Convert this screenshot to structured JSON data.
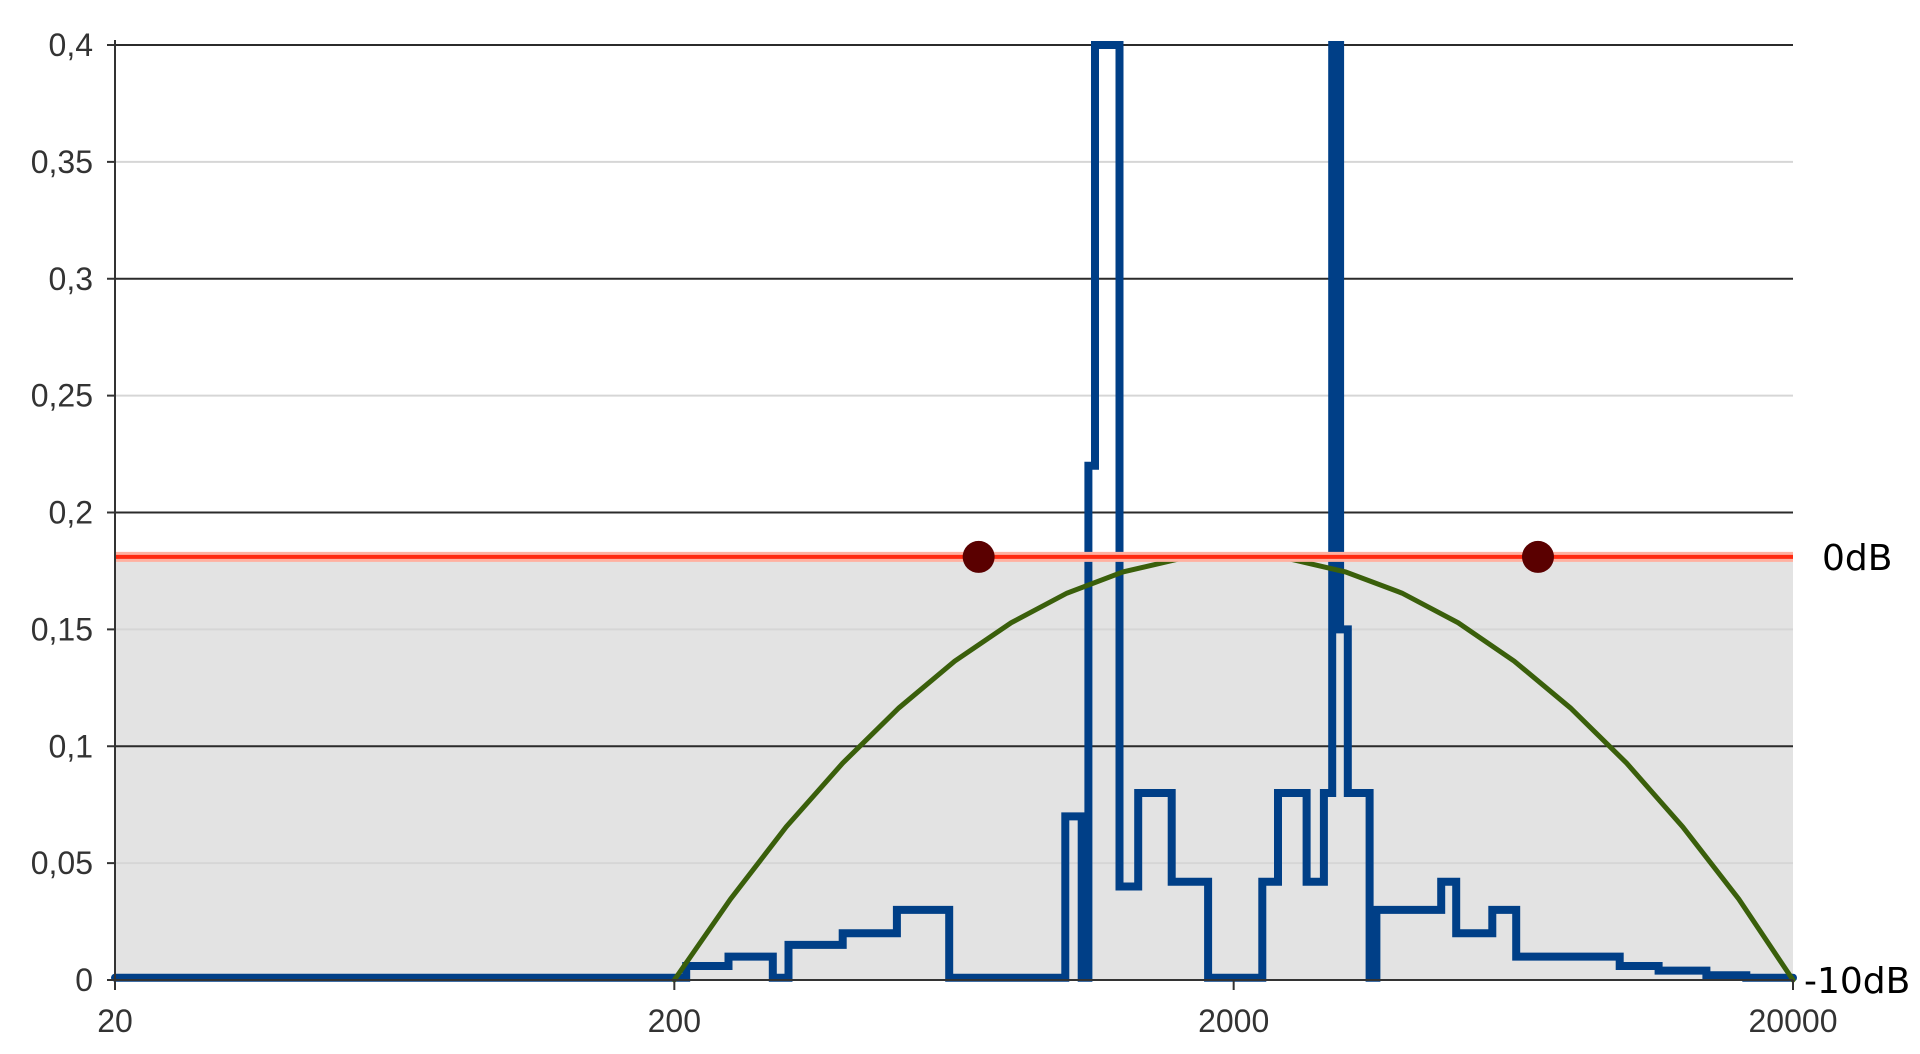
{
  "chart_data": {
    "type": "line",
    "x_scale": "log",
    "xlim": [
      20,
      20000
    ],
    "ylim": [
      0,
      0.4
    ],
    "x_ticks": [
      "20",
      "200",
      "2000",
      "20000"
    ],
    "y_ticks": [
      "0",
      "0,05",
      "0,1",
      "0,15",
      "0,2",
      "0,25",
      "0,3",
      "0,35",
      "0,4"
    ],
    "grid": true,
    "shaded_band": {
      "from": 0,
      "to": 0.18,
      "color": "#e3e3e3"
    },
    "reference_line": {
      "y": 0.181,
      "color": "#ff2a10"
    },
    "right_labels": [
      {
        "text": "0dB",
        "y": 0.181
      },
      {
        "text": "-10dB",
        "y": 0
      }
    ],
    "markers": [
      {
        "x": 700,
        "y": 0.181,
        "color": "#5a0000"
      },
      {
        "x": 7000,
        "y": 0.181,
        "color": "#5a0000"
      }
    ],
    "series": [
      {
        "style": "step",
        "color": "#003f87",
        "x": [
          20,
          200,
          210,
          210,
          250,
          250,
          300,
          300,
          320,
          320,
          400,
          400,
          500,
          500,
          620,
          620,
          1000,
          1000,
          1070,
          1070,
          1100,
          1100,
          1130,
          1130,
          1140,
          1140,
          1250,
          1250,
          1350,
          1350,
          1550,
          1550,
          1800,
          1800,
          2250,
          2250,
          2400,
          2400,
          2700,
          2700,
          2900,
          2900,
          3000,
          3000,
          3100,
          3100,
          3200,
          3200,
          3500,
          3500,
          3600,
          3600,
          4700,
          4700,
          5000,
          5000,
          5800,
          5800,
          6400,
          6400,
          7600,
          7600,
          8000,
          8000,
          9800,
          9800,
          11500,
          11500,
          14000,
          14000,
          16500,
          16500,
          20000
        ],
        "y": [
          0.001,
          0.001,
          0.001,
          0.006,
          0.006,
          0.01,
          0.01,
          0.001,
          0.001,
          0.015,
          0.015,
          0.02,
          0.02,
          0.03,
          0.03,
          0.001,
          0.001,
          0.07,
          0.07,
          0.001,
          0.001,
          0.22,
          0.22,
          0.4,
          0.4,
          0.4,
          0.4,
          0.04,
          0.04,
          0.08,
          0.08,
          0.042,
          0.042,
          0.001,
          0.001,
          0.042,
          0.042,
          0.08,
          0.08,
          0.042,
          0.042,
          0.08,
          0.08,
          0.4,
          0.4,
          0.15,
          0.15,
          0.08,
          0.08,
          0.001,
          0.001,
          0.03,
          0.03,
          0.042,
          0.042,
          0.02,
          0.02,
          0.03,
          0.03,
          0.01,
          0.01,
          0.01,
          0.01,
          0.01,
          0.01,
          0.006,
          0.006,
          0.004,
          0.004,
          0.002,
          0.002,
          0.001,
          0.001
        ]
      },
      {
        "style": "curve",
        "color": "#3a5f0b",
        "x": [
          200,
          252,
          317,
          400,
          504,
          634,
          800,
          1007,
          1268,
          1596,
          2000,
          2519,
          3170,
          4000,
          5040,
          6350,
          8000,
          10080,
          12700,
          16000,
          20000
        ],
        "y": [
          0.0,
          0.0346,
          0.0655,
          0.0928,
          0.1164,
          0.1364,
          0.1528,
          0.1655,
          0.1746,
          0.1801,
          0.181,
          0.1801,
          0.1746,
          0.1655,
          0.1528,
          0.1364,
          0.1164,
          0.0928,
          0.0655,
          0.0346,
          0.0
        ]
      }
    ]
  }
}
